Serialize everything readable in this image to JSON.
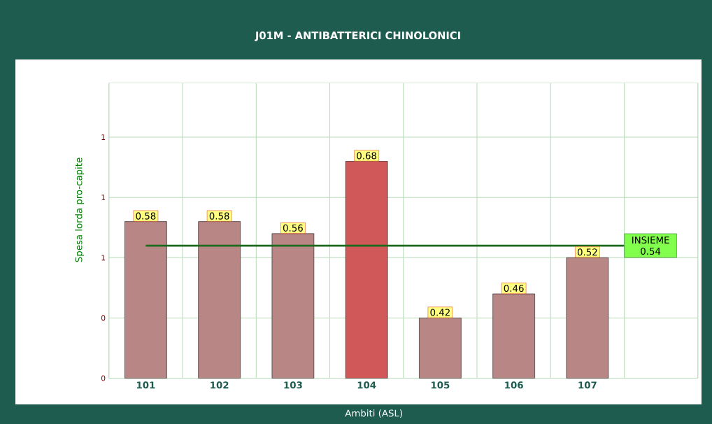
{
  "chart_data": {
    "type": "bar",
    "title": "J01M - ANTIBATTERICI CHINOLONICI",
    "xlabel": "Ambiti (ASL)",
    "ylabel": "Spesa lorda pro-capite",
    "categories": [
      "101",
      "102",
      "103",
      "104",
      "105",
      "106",
      "107"
    ],
    "values": [
      0.58,
      0.58,
      0.56,
      0.68,
      0.42,
      0.46,
      0.52
    ],
    "colors": [
      "#b98686",
      "#b98686",
      "#b98686",
      "#d05858",
      "#b98686",
      "#b98686",
      "#b98686"
    ],
    "data_labels": true,
    "grid": true,
    "ylim": [
      0.32,
      0.81
    ],
    "yticks": [
      {
        "value": 0.32,
        "label": "0"
      },
      {
        "value": 0.42,
        "label": "0"
      },
      {
        "value": 0.52,
        "label": "1"
      },
      {
        "value": 0.62,
        "label": "1"
      },
      {
        "value": 0.72,
        "label": "1"
      }
    ],
    "ref_lines": [
      {
        "axis": "y",
        "value": 0.54,
        "label": "INSIEME 0.54",
        "color": "#1a6b1a"
      }
    ]
  }
}
